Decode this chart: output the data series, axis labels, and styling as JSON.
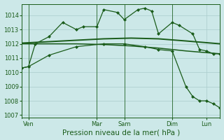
{
  "background_color": "#cce8e8",
  "grid_color": "#aacccc",
  "line_color": "#1a5c1a",
  "xlim": [
    0,
    29
  ],
  "ylim": [
    1006.8,
    1014.8
  ],
  "yticks": [
    1007,
    1008,
    1009,
    1010,
    1011,
    1012,
    1013,
    1014
  ],
  "xlabel": "Pression niveau de la mer( hPa )",
  "xlabel_fontsize": 7.5,
  "tick_fontsize": 6,
  "vlines_x": [
    1,
    11,
    15,
    22
  ],
  "xtick_labels": [
    "Ven",
    "Mar",
    "Sam",
    "Dim",
    "Lun"
  ],
  "xtick_pos": [
    1,
    11,
    15,
    22,
    27
  ],
  "series": [
    {
      "x": [
        0,
        1,
        2,
        4,
        6,
        8,
        9,
        11,
        12,
        14,
        15,
        17,
        18,
        19,
        20,
        22,
        23,
        25,
        26,
        27,
        28,
        29
      ],
      "y": [
        1010.3,
        1010.4,
        1012.0,
        1012.5,
        1013.5,
        1013.0,
        1013.2,
        1013.2,
        1014.4,
        1014.2,
        1013.7,
        1014.4,
        1014.5,
        1014.3,
        1012.7,
        1013.5,
        1013.3,
        1012.7,
        1011.6,
        1011.5,
        1011.3,
        1011.3
      ],
      "marker": "D",
      "ms": 2.0,
      "lw": 0.9
    },
    {
      "x": [
        0,
        4,
        8,
        12,
        16,
        20,
        24,
        29
      ],
      "y": [
        1012.05,
        1012.15,
        1012.25,
        1012.35,
        1012.4,
        1012.35,
        1012.2,
        1012.0
      ],
      "marker": null,
      "ms": 0,
      "lw": 1.4
    },
    {
      "x": [
        0,
        4,
        8,
        12,
        16,
        20,
        24,
        29
      ],
      "y": [
        1012.0,
        1012.0,
        1012.0,
        1011.95,
        1011.85,
        1011.7,
        1011.5,
        1011.3
      ],
      "marker": null,
      "ms": 0,
      "lw": 1.1
    },
    {
      "x": [
        0,
        1,
        4,
        8,
        12,
        15,
        18,
        20,
        22,
        24,
        25,
        26,
        27,
        28,
        29
      ],
      "y": [
        1010.3,
        1010.4,
        1011.2,
        1011.8,
        1012.0,
        1012.0,
        1011.8,
        1011.6,
        1011.5,
        1009.0,
        1008.3,
        1008.0,
        1008.0,
        1007.8,
        1007.5
      ],
      "marker": "D",
      "ms": 2.0,
      "lw": 0.9
    }
  ]
}
